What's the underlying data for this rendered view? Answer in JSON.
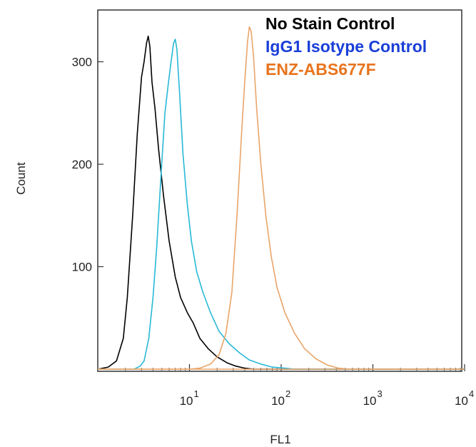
{
  "chart_data": {
    "type": "histogram",
    "xlabel": "FL1",
    "ylabel": "Count",
    "x_scale": "log",
    "xlim": [
      1,
      10000
    ],
    "ylim": [
      0,
      345
    ],
    "x_ticks": [
      {
        "value": 10,
        "base": "10",
        "exp": "1"
      },
      {
        "value": 100,
        "base": "10",
        "exp": "2"
      },
      {
        "value": 1000,
        "base": "10",
        "exp": "3"
      },
      {
        "value": 10000,
        "base": "10",
        "exp": "4"
      }
    ],
    "y_ticks": [
      100,
      200,
      300
    ],
    "legend_position": "top-right",
    "series": [
      {
        "name": "No Stain Control",
        "color": "#000000",
        "legend_color": "#000000",
        "points": [
          [
            1,
            0
          ],
          [
            1.3,
            2
          ],
          [
            1.6,
            8
          ],
          [
            1.9,
            30
          ],
          [
            2.1,
            70
          ],
          [
            2.4,
            150
          ],
          [
            2.7,
            230
          ],
          [
            3.0,
            285
          ],
          [
            3.2,
            300
          ],
          [
            3.4,
            318
          ],
          [
            3.55,
            325
          ],
          [
            3.7,
            315
          ],
          [
            3.9,
            280
          ],
          [
            4.2,
            255
          ],
          [
            4.6,
            215
          ],
          [
            5.2,
            170
          ],
          [
            6.0,
            125
          ],
          [
            7.0,
            90
          ],
          [
            8.0,
            70
          ],
          [
            9.5,
            55
          ],
          [
            11,
            45
          ],
          [
            13,
            30
          ],
          [
            16,
            20
          ],
          [
            20,
            12
          ],
          [
            26,
            6
          ],
          [
            32,
            3
          ],
          [
            40,
            1
          ],
          [
            50,
            0
          ],
          [
            10000,
            0
          ]
        ]
      },
      {
        "name": "IgG1 Isotype Control",
        "color": "#29b8d6",
        "legend_color": "#1a3fd8",
        "points": [
          [
            1,
            0
          ],
          [
            2.5,
            0
          ],
          [
            2.9,
            3
          ],
          [
            3.2,
            8
          ],
          [
            3.6,
            30
          ],
          [
            4.0,
            70
          ],
          [
            4.4,
            120
          ],
          [
            4.9,
            190
          ],
          [
            5.4,
            250
          ],
          [
            5.9,
            280
          ],
          [
            6.3,
            300
          ],
          [
            6.7,
            318
          ],
          [
            7.0,
            322
          ],
          [
            7.3,
            312
          ],
          [
            7.8,
            270
          ],
          [
            8.5,
            210
          ],
          [
            9.5,
            160
          ],
          [
            10.5,
            125
          ],
          [
            12,
            95
          ],
          [
            14,
            75
          ],
          [
            17,
            55
          ],
          [
            21,
            37
          ],
          [
            27,
            25
          ],
          [
            35,
            16
          ],
          [
            45,
            9
          ],
          [
            60,
            5
          ],
          [
            80,
            2
          ],
          [
            110,
            1
          ],
          [
            140,
            0
          ],
          [
            10000,
            0
          ]
        ]
      },
      {
        "name": "ENZ-ABS677F",
        "color": "#e8a56a",
        "legend_color": "#e8741e",
        "points": [
          [
            1,
            0
          ],
          [
            10,
            0
          ],
          [
            13,
            1
          ],
          [
            17,
            5
          ],
          [
            21,
            14
          ],
          [
            25,
            35
          ],
          [
            29,
            75
          ],
          [
            33,
            150
          ],
          [
            37,
            230
          ],
          [
            40,
            280
          ],
          [
            43,
            320
          ],
          [
            45,
            334
          ],
          [
            47,
            330
          ],
          [
            50,
            305
          ],
          [
            54,
            255
          ],
          [
            60,
            200
          ],
          [
            68,
            150
          ],
          [
            78,
            110
          ],
          [
            90,
            80
          ],
          [
            110,
            55
          ],
          [
            140,
            35
          ],
          [
            180,
            20
          ],
          [
            240,
            10
          ],
          [
            320,
            4
          ],
          [
            420,
            1
          ],
          [
            550,
            0
          ],
          [
            10000,
            0
          ]
        ]
      }
    ]
  }
}
